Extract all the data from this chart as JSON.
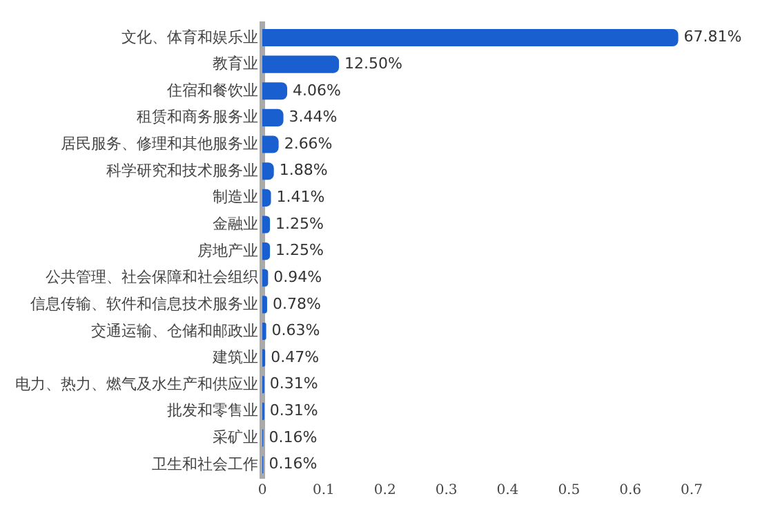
{
  "chart_data": {
    "type": "bar",
    "orientation": "horizontal",
    "categories": [
      "文化、体育和娱乐业",
      "教育业",
      "住宿和餐饮业",
      "租赁和商务服务业",
      "居民服务、修理和其他服务业",
      "科学研究和技术服务业",
      "制造业",
      "金融业",
      "房地产业",
      "公共管理、社会保障和社会组织",
      "信息传输、软件和信息技术服务业",
      "交通运输、仓储和邮政业",
      "建筑业",
      "电力、热力、燃气及水生产和供应业",
      "批发和零售业",
      "采矿业",
      "卫生和社会工作"
    ],
    "values": [
      0.6781,
      0.125,
      0.0406,
      0.0344,
      0.0266,
      0.0188,
      0.0141,
      0.0125,
      0.0125,
      0.0094,
      0.0078,
      0.0063,
      0.0047,
      0.0031,
      0.0031,
      0.0016,
      0.0016
    ],
    "value_labels": [
      "67.81%",
      "12.50%",
      "4.06%",
      "3.44%",
      "2.66%",
      "1.88%",
      "1.41%",
      "1.25%",
      "1.25%",
      "0.94%",
      "0.78%",
      "0.63%",
      "0.47%",
      "0.31%",
      "0.31%",
      "0.16%",
      "0.16%"
    ],
    "color": "#1a5fd0",
    "xlim": [
      0,
      0.7
    ],
    "xticks": [
      0,
      0.1,
      0.2,
      0.3,
      0.4,
      0.5,
      0.6,
      0.7
    ],
    "grid": false,
    "legend": false
  }
}
